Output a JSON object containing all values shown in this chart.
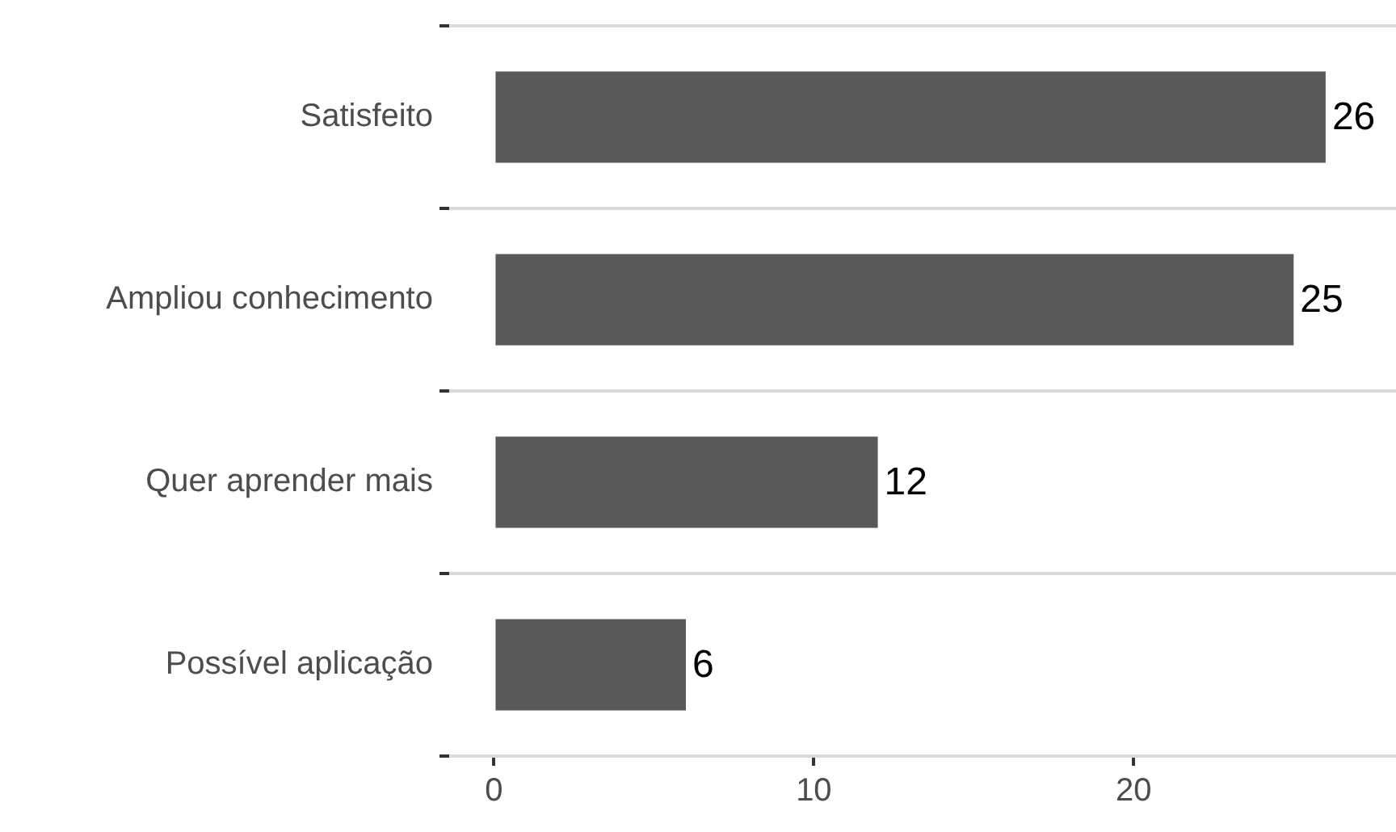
{
  "chart_data": {
    "type": "bar",
    "orientation": "horizontal",
    "categories": [
      "Satisfeito",
      "Ampliou conhecimento",
      "Quer aprender mais",
      "Possível aplicação"
    ],
    "values": [
      26,
      25,
      12,
      6
    ],
    "color": "#595959",
    "xlim": [
      -1.4,
      28.2
    ],
    "xticks": [
      0,
      10,
      20
    ],
    "grid": "y",
    "data_labels": true,
    "legend": false
  }
}
